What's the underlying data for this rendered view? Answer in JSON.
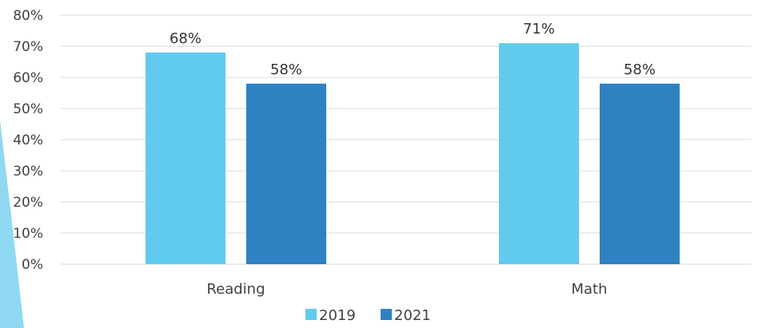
{
  "chart_data": {
    "type": "bar",
    "categories": [
      "Reading",
      "Math"
    ],
    "series": [
      {
        "name": "2019",
        "values": [
          68,
          71
        ],
        "labels": [
          "68%",
          "71%"
        ],
        "color": "#61CBEF"
      },
      {
        "name": "2021",
        "values": [
          58,
          58
        ],
        "labels": [
          "58%",
          "58%"
        ],
        "color": "#2E82C2"
      }
    ],
    "ylim": [
      0,
      80
    ],
    "yticks": [
      "0%",
      "10%",
      "20%",
      "30%",
      "40%",
      "50%",
      "60%",
      "70%",
      "80%"
    ],
    "grid": true,
    "legend_position": "bottom",
    "decoration_color": "#8FD8F2"
  }
}
